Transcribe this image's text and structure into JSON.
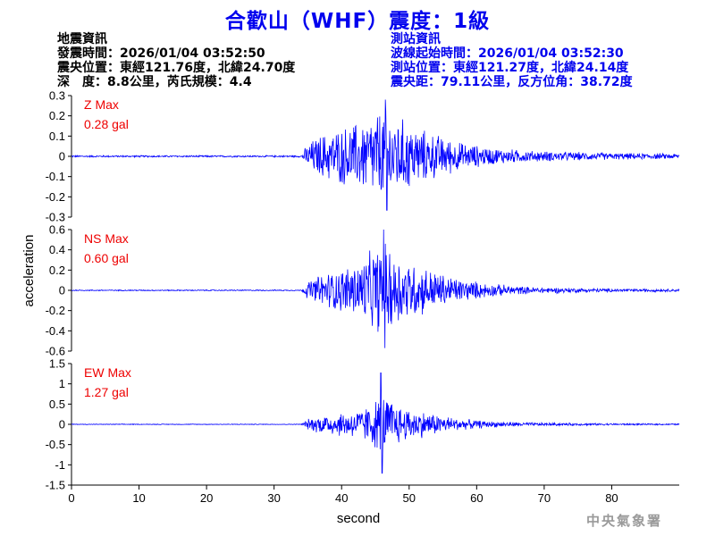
{
  "title": "合歡山（WHF）震度：1級",
  "event_info": {
    "heading": "地震資訊",
    "origin_time": "發震時間：2026/01/04 03:52:50",
    "epicenter": "震央位置：東經121.76度，北緯24.70度",
    "depth_magnitude": "深　度：8.8公里，芮氏規模：4.4"
  },
  "station_info": {
    "heading": "測站資訊",
    "wave_start_time": "波線起始時間：2026/01/04 03:52:30",
    "station_location": "測站位置：東經121.27度，北緯24.14度",
    "distance_azimuth": "震央距：79.11公里，反方位角：38.72度"
  },
  "watermark": "中央氣象署",
  "colors": {
    "title": "#0000ee",
    "trace": "#0000ff",
    "max_label": "#ee0000",
    "axis": "#000000",
    "watermark": "#9a9a9a"
  },
  "chart_data": {
    "type": "line",
    "xlabel": "second",
    "ylabel": "acceleration",
    "xlim": [
      0,
      90
    ],
    "x_ticks": [
      "0",
      "10",
      "20",
      "30",
      "40",
      "50",
      "60",
      "70",
      "80"
    ],
    "x_tick_values": [
      0,
      10,
      20,
      30,
      40,
      50,
      60,
      70,
      80
    ],
    "grid": false,
    "panels": [
      {
        "name": "Z",
        "max_label": "Z Max",
        "max_value": "0.28 gal",
        "ylim": [
          -0.3,
          0.3
        ],
        "y_ticks": [
          "0.3",
          "0.2",
          "0.1",
          "0",
          "-0.1",
          "-0.2",
          "-0.3"
        ],
        "y_tick_values": [
          0.3,
          0.2,
          0.1,
          0,
          -0.1,
          -0.2,
          -0.3
        ],
        "envelope": {
          "x": [
            0,
            34,
            35,
            37,
            40,
            43,
            45,
            46,
            47,
            49,
            52,
            55,
            58,
            62,
            68,
            80,
            90
          ],
          "amplitude": [
            0.004,
            0.004,
            0.06,
            0.1,
            0.13,
            0.16,
            0.2,
            0.22,
            0.2,
            0.17,
            0.12,
            0.09,
            0.06,
            0.04,
            0.025,
            0.015,
            0.012
          ],
          "peak_x": 46.5,
          "peak_value": 0.28
        }
      },
      {
        "name": "NS",
        "max_label": "NS Max",
        "max_value": "0.60 gal",
        "ylim": [
          -0.6,
          0.6
        ],
        "y_ticks": [
          "0.6",
          "0.4",
          "0.2",
          "0",
          "-0.2",
          "-0.4",
          "-0.6"
        ],
        "y_tick_values": [
          0.6,
          0.4,
          0.2,
          0,
          -0.2,
          -0.4,
          -0.6
        ],
        "envelope": {
          "x": [
            0,
            34,
            35,
            37,
            40,
            43,
            45,
            46,
            47,
            49,
            52,
            55,
            58,
            62,
            68,
            80,
            90
          ],
          "amplitude": [
            0.005,
            0.005,
            0.08,
            0.15,
            0.2,
            0.28,
            0.38,
            0.45,
            0.4,
            0.3,
            0.22,
            0.15,
            0.1,
            0.06,
            0.03,
            0.015,
            0.012
          ],
          "peak_x": 46.2,
          "peak_value": 0.6
        }
      },
      {
        "name": "EW",
        "max_label": "EW Max",
        "max_value": "1.27 gal",
        "ylim": [
          -1.5,
          1.5
        ],
        "y_ticks": [
          "1.5",
          "1",
          "0.5",
          "0",
          "-0.5",
          "-1",
          "-1.5"
        ],
        "y_tick_values": [
          1.5,
          1,
          0.5,
          0,
          -0.5,
          -1,
          -1.5
        ],
        "envelope": {
          "x": [
            0,
            34,
            35,
            37,
            40,
            43,
            45,
            46,
            47,
            49,
            52,
            55,
            58,
            62,
            68,
            80,
            90
          ],
          "amplitude": [
            0.008,
            0.008,
            0.12,
            0.22,
            0.28,
            0.35,
            0.55,
            0.75,
            0.6,
            0.4,
            0.3,
            0.2,
            0.12,
            0.07,
            0.04,
            0.02,
            0.015
          ],
          "peak_x": 45.8,
          "peak_value": 1.27
        }
      }
    ]
  }
}
